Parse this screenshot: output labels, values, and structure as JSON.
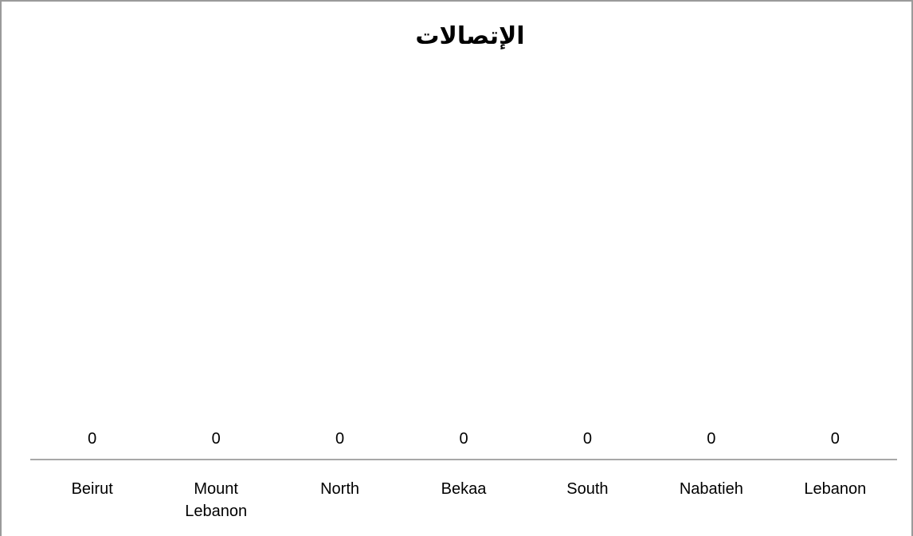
{
  "chart_data": {
    "type": "bar",
    "title": "الإتصالات",
    "categories": [
      [
        "Beirut"
      ],
      [
        "Mount",
        "Lebanon"
      ],
      [
        "North"
      ],
      [
        "Bekaa"
      ],
      [
        "South"
      ],
      [
        "Nabatieh"
      ],
      [
        "Lebanon"
      ]
    ],
    "values": [
      0,
      0,
      0,
      0,
      0,
      0,
      0
    ],
    "data_labels": [
      "0",
      "0",
      "0",
      "0",
      "0",
      "0",
      "0"
    ],
    "xlabel": "",
    "ylabel": "",
    "grid": false,
    "legend": "none",
    "colors": {
      "axis": "#8c8c8c",
      "bar": "#4f81bd",
      "text": "#000000"
    }
  }
}
